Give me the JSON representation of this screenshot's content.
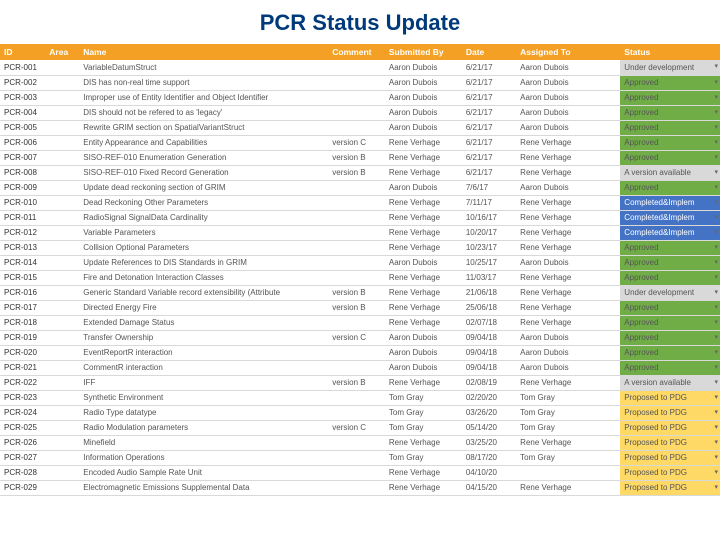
{
  "title": "PCR Status Update",
  "colors": {
    "header_bg": "#f3a024",
    "header_fg": "#ffffff",
    "title_color": "#003a7a",
    "row_border": "#d9d9d9",
    "status": {
      "under_dev": "#d9d9d9",
      "approved": "#70ad47",
      "version_avail": "#d9d9d9",
      "completed": "#4472c4",
      "proposed": "#ffd966"
    }
  },
  "columns": [
    "ID",
    "Area",
    "Name",
    "Comment",
    "Submitted By",
    "Date",
    "Assigned To",
    "",
    "Status"
  ],
  "rows": [
    {
      "id": "PCR-001",
      "area": "",
      "name": "VariableDatumStruct",
      "comment": "",
      "sub": "Aaron Dubois",
      "date": "6/21/17",
      "assigned": "Aaron Dubois",
      "status": "Under development",
      "sc": "under_dev"
    },
    {
      "id": "PCR-002",
      "area": "",
      "name": "DIS has non-real time support",
      "comment": "",
      "sub": "Aaron Dubois",
      "date": "6/21/17",
      "assigned": "Aaron Dubois",
      "status": "Approved",
      "sc": "approved"
    },
    {
      "id": "PCR-003",
      "area": "",
      "name": "Improper use of Entity Identifier and Object Identifier",
      "comment": "",
      "sub": "Aaron Dubois",
      "date": "6/21/17",
      "assigned": "Aaron Dubois",
      "status": "Approved",
      "sc": "approved"
    },
    {
      "id": "PCR-004",
      "area": "",
      "name": "DIS should not be refered to as 'legacy'",
      "comment": "",
      "sub": "Aaron Dubois",
      "date": "6/21/17",
      "assigned": "Aaron Dubois",
      "status": "Approved",
      "sc": "approved"
    },
    {
      "id": "PCR-005",
      "area": "",
      "name": "Rewrite GRIM section on SpatialVariantStruct",
      "comment": "",
      "sub": "Aaron Dubois",
      "date": "6/21/17",
      "assigned": "Aaron Dubois",
      "status": "Approved",
      "sc": "approved"
    },
    {
      "id": "PCR-006",
      "area": "",
      "name": "Entity Appearance and Capabilities",
      "comment": "version C",
      "sub": "Rene Verhage",
      "date": "6/21/17",
      "assigned": "Rene Verhage",
      "status": "Approved",
      "sc": "approved"
    },
    {
      "id": "PCR-007",
      "area": "",
      "name": "SISO-REF-010 Enumeration Generation",
      "comment": "version B",
      "sub": "Rene Verhage",
      "date": "6/21/17",
      "assigned": "Rene Verhage",
      "status": "Approved",
      "sc": "approved"
    },
    {
      "id": "PCR-008",
      "area": "",
      "name": "SISO-REF-010 Fixed Record Generation",
      "comment": "version B",
      "sub": "Rene Verhage",
      "date": "6/21/17",
      "assigned": "Rene Verhage",
      "status": "A version available",
      "sc": "version_avail"
    },
    {
      "id": "PCR-009",
      "area": "",
      "name": "Update dead reckoning section of GRIM",
      "comment": "",
      "sub": "Aaron Dubois",
      "date": "7/6/17",
      "assigned": "Aaron Dubois",
      "status": "Approved",
      "sc": "approved"
    },
    {
      "id": "PCR-010",
      "area": "",
      "name": "Dead Reckoning Other Parameters",
      "comment": "",
      "sub": "Rene Verhage",
      "date": "7/11/17",
      "assigned": "Rene Verhage",
      "status": "Completed&Implem",
      "sc": "completed"
    },
    {
      "id": "PCR-011",
      "area": "",
      "name": "RadioSignal SignalData Cardinality",
      "comment": "",
      "sub": "Rene Verhage",
      "date": "10/16/17",
      "assigned": "Rene Verhage",
      "status": "Completed&Implem",
      "sc": "completed"
    },
    {
      "id": "PCR-012",
      "area": "",
      "name": "Variable Parameters",
      "comment": "",
      "sub": "Rene Verhage",
      "date": "10/20/17",
      "assigned": "Rene Verhage",
      "status": "Completed&Implem",
      "sc": "completed"
    },
    {
      "id": "PCR-013",
      "area": "",
      "name": "Collision Optional Parameters",
      "comment": "",
      "sub": "Rene Verhage",
      "date": "10/23/17",
      "assigned": "Rene Verhage",
      "status": "Approved",
      "sc": "approved"
    },
    {
      "id": "PCR-014",
      "area": "",
      "name": "Update References to DIS Standards in GRIM",
      "comment": "",
      "sub": "Aaron Dubois",
      "date": "10/25/17",
      "assigned": "Aaron Dubois",
      "status": "Approved",
      "sc": "approved"
    },
    {
      "id": "PCR-015",
      "area": "",
      "name": "Fire and Detonation Interaction Classes",
      "comment": "",
      "sub": "Rene Verhage",
      "date": "11/03/17",
      "assigned": "Rene Verhage",
      "status": "Approved",
      "sc": "approved"
    },
    {
      "id": "PCR-016",
      "area": "",
      "name": "Generic Standard Variable record extensibility (Attribute",
      "comment": "version B",
      "sub": "Rene Verhage",
      "date": "21/06/18",
      "assigned": "Rene Verhage",
      "status": "Under development",
      "sc": "under_dev"
    },
    {
      "id": "PCR-017",
      "area": "",
      "name": "Directed Energy Fire",
      "comment": "version B",
      "sub": "Rene Verhage",
      "date": "25/06/18",
      "assigned": "Rene Verhage",
      "status": "Approved",
      "sc": "approved"
    },
    {
      "id": "PCR-018",
      "area": "",
      "name": "Extended Damage Status",
      "comment": "",
      "sub": "Rene Verhage",
      "date": "02/07/18",
      "assigned": "Rene Verhage",
      "status": "Approved",
      "sc": "approved"
    },
    {
      "id": "PCR-019",
      "area": "",
      "name": "Transfer Ownership",
      "comment": "version C",
      "sub": "Aaron Dubois",
      "date": "09/04/18",
      "assigned": "Aaron Dubois",
      "status": "Approved",
      "sc": "approved"
    },
    {
      "id": "PCR-020",
      "area": "",
      "name": "EventReportR interaction",
      "comment": "",
      "sub": "Aaron Dubois",
      "date": "09/04/18",
      "assigned": "Aaron Dubois",
      "status": "Approved",
      "sc": "approved"
    },
    {
      "id": "PCR-021",
      "area": "",
      "name": "CommentR interaction",
      "comment": "",
      "sub": "Aaron Dubois",
      "date": "09/04/18",
      "assigned": "Aaron Dubois",
      "status": "Approved",
      "sc": "approved"
    },
    {
      "id": "PCR-022",
      "area": "",
      "name": "IFF",
      "comment": "version B",
      "sub": "Rene Verhage",
      "date": "02/08/19",
      "assigned": "Rene Verhage",
      "status": "A version available",
      "sc": "version_avail"
    },
    {
      "id": "PCR-023",
      "area": "",
      "name": "Synthetic Environment",
      "comment": "",
      "sub": "Tom Gray",
      "date": "02/20/20",
      "assigned": "Tom Gray",
      "status": "Proposed to PDG",
      "sc": "proposed"
    },
    {
      "id": "PCR-024",
      "area": "",
      "name": "Radio Type datatype",
      "comment": "",
      "sub": "Tom Gray",
      "date": "03/26/20",
      "assigned": "Tom Gray",
      "status": "Proposed to PDG",
      "sc": "proposed"
    },
    {
      "id": "PCR-025",
      "area": "",
      "name": "Radio Modulation parameters",
      "comment": "version C",
      "sub": "Tom Gray",
      "date": "05/14/20",
      "assigned": "Tom Gray",
      "status": "Proposed to PDG",
      "sc": "proposed"
    },
    {
      "id": "PCR-026",
      "area": "",
      "name": "Minefield",
      "comment": "",
      "sub": "Rene Verhage",
      "date": "03/25/20",
      "assigned": "Rene Verhage",
      "status": "Proposed to PDG",
      "sc": "proposed"
    },
    {
      "id": "PCR-027",
      "area": "",
      "name": "Information Operations",
      "comment": "",
      "sub": "Tom Gray",
      "date": "08/17/20",
      "assigned": "Tom Gray",
      "status": "Proposed to PDG",
      "sc": "proposed"
    },
    {
      "id": "PCR-028",
      "area": "",
      "name": "Encoded Audio Sample Rate Unit",
      "comment": "",
      "sub": "Rene Verhage",
      "date": "04/10/20",
      "assigned": "",
      "status": "Proposed to PDG",
      "sc": "proposed"
    },
    {
      "id": "PCR-029",
      "area": "",
      "name": "Electromagnetic Emissions Supplemental Data",
      "comment": "",
      "sub": "Rene Verhage",
      "date": "04/15/20",
      "assigned": "Rene Verhage",
      "status": "Proposed to PDG",
      "sc": "proposed"
    }
  ]
}
